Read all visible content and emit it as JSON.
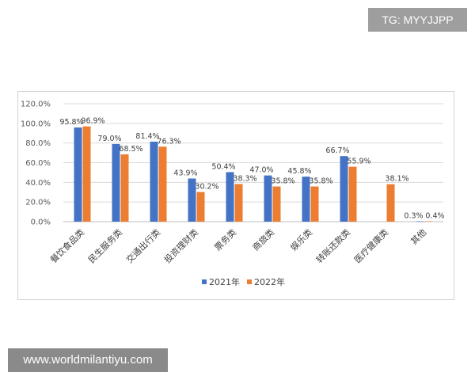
{
  "watermark_top": "TG: MYYJJPP",
  "watermark_bottom": "www.worldmilantiyu.com",
  "colors": {
    "series_2021": "#4472c4",
    "series_2022": "#ed7d31",
    "grid": "#d9d9d9"
  },
  "chart_data": {
    "type": "bar",
    "categories": [
      "餐饮食品类",
      "民生服务类",
      "交通出行类",
      "投资理财类",
      "票务类",
      "商旅类",
      "娱乐类",
      "转账还款类",
      "医疗健康类",
      "其他"
    ],
    "series": [
      {
        "name": "2021年",
        "values": [
          95.8,
          79.0,
          81.4,
          43.9,
          50.4,
          47.0,
          45.8,
          66.7,
          null,
          0.3
        ],
        "labels": [
          "95.8%",
          "79.0%",
          "81.4%",
          "43.9%",
          "50.4%",
          "47.0%",
          "45.8%",
          "66.7%",
          "",
          "0.3%"
        ]
      },
      {
        "name": "2022年",
        "values": [
          96.9,
          68.5,
          76.3,
          30.2,
          38.3,
          35.8,
          35.8,
          55.9,
          38.1,
          0.4
        ],
        "labels": [
          "96.9%",
          "68.5%",
          "76.3%",
          "30.2%",
          "38.3%",
          "35.8%",
          "35.8%",
          "55.9%",
          "38.1%",
          "0.4%"
        ]
      }
    ],
    "yticks": [
      "0.0%",
      "20.0%",
      "40.0%",
      "60.0%",
      "80.0%",
      "100.0%",
      "120.0%"
    ],
    "ylim": [
      0,
      120
    ],
    "grid": true,
    "legend_position": "bottom",
    "title": "",
    "xlabel": "",
    "ylabel": ""
  }
}
